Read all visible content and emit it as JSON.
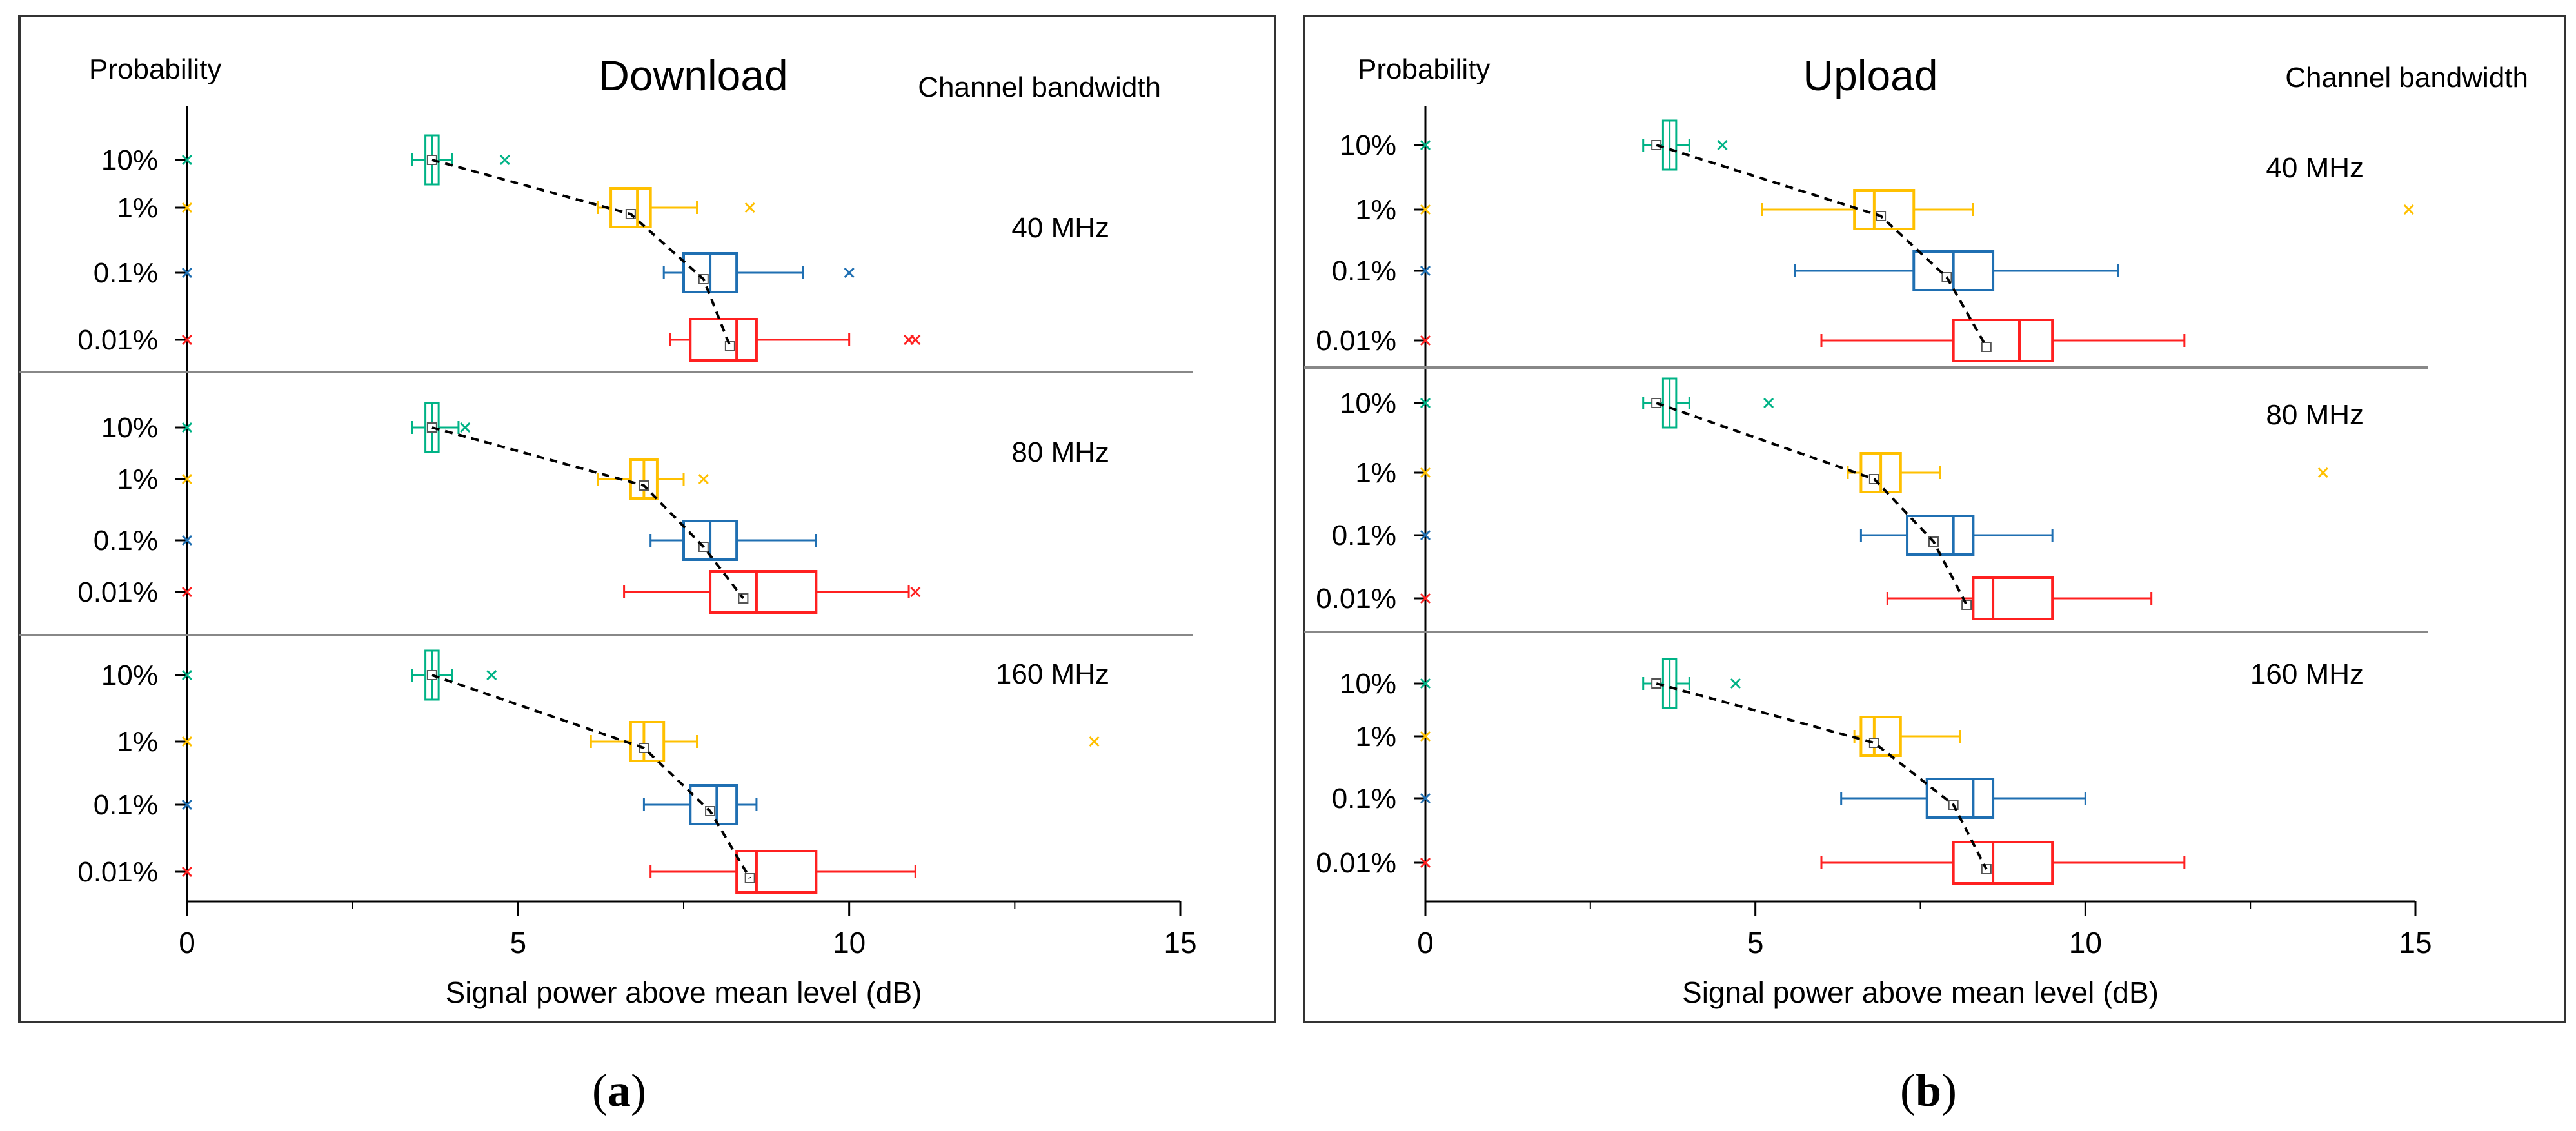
{
  "colors": {
    "40pct": "#00b386",
    "10pct": "#ffc000",
    "01pct": "#1f6fb2",
    "001pct": "#ff2020",
    "frame": "#333333",
    "divider": "#888888",
    "trend": "#000000"
  },
  "chart_data": [
    {
      "type": "boxplot",
      "panel_label": "(a)",
      "panel_label_letter": "a",
      "title": "Download",
      "ylabel": "Probability",
      "group_header": "Channel bandwidth",
      "xlabel": "Signal power above mean level (dB)",
      "xlim": [
        0,
        15
      ],
      "xticks": [
        "0",
        "5",
        "10",
        "15"
      ],
      "xtick_values": [
        0,
        5,
        10,
        15
      ],
      "categories": [
        "10%",
        "1%",
        "0.1%",
        "0.01%"
      ],
      "groups": [
        {
          "name": "40 MHz",
          "boxes": [
            {
              "category": "10%",
              "whisker_low": 3.4,
              "q1": 3.6,
              "median": 3.7,
              "q3": 3.8,
              "whisker_high": 4.0,
              "mean": 3.7,
              "outliers": [
                0,
                4.8
              ]
            },
            {
              "category": "1%",
              "whisker_low": 6.2,
              "q1": 6.4,
              "median": 6.8,
              "q3": 7.0,
              "whisker_high": 7.7,
              "mean": 6.7,
              "outliers": [
                0,
                8.5
              ]
            },
            {
              "category": "0.1%",
              "whisker_low": 7.2,
              "q1": 7.5,
              "median": 7.9,
              "q3": 8.3,
              "whisker_high": 9.3,
              "mean": 7.8,
              "outliers": [
                0,
                10.0
              ]
            },
            {
              "category": "0.01%",
              "whisker_low": 7.3,
              "q1": 7.6,
              "median": 8.3,
              "q3": 8.6,
              "whisker_high": 10.0,
              "mean": 8.2,
              "outliers": [
                0,
                10.9,
                11.0
              ]
            }
          ]
        },
        {
          "name": "80 MHz",
          "boxes": [
            {
              "category": "10%",
              "whisker_low": 3.4,
              "q1": 3.6,
              "median": 3.7,
              "q3": 3.8,
              "whisker_high": 4.1,
              "mean": 3.7,
              "outliers": [
                0,
                4.2
              ]
            },
            {
              "category": "1%",
              "whisker_low": 6.2,
              "q1": 6.7,
              "median": 6.9,
              "q3": 7.1,
              "whisker_high": 7.5,
              "mean": 6.9,
              "outliers": [
                0,
                7.8
              ]
            },
            {
              "category": "0.1%",
              "whisker_low": 7.0,
              "q1": 7.5,
              "median": 7.9,
              "q3": 8.3,
              "whisker_high": 9.5,
              "mean": 7.8,
              "outliers": [
                0
              ]
            },
            {
              "category": "0.01%",
              "whisker_low": 6.6,
              "q1": 7.9,
              "median": 8.6,
              "q3": 9.5,
              "whisker_high": 10.9,
              "mean": 8.4,
              "outliers": [
                0,
                11.0
              ]
            }
          ]
        },
        {
          "name": "160 MHz",
          "boxes": [
            {
              "category": "10%",
              "whisker_low": 3.4,
              "q1": 3.6,
              "median": 3.7,
              "q3": 3.8,
              "whisker_high": 4.0,
              "mean": 3.7,
              "outliers": [
                0,
                4.6
              ]
            },
            {
              "category": "1%",
              "whisker_low": 6.1,
              "q1": 6.7,
              "median": 6.9,
              "q3": 7.2,
              "whisker_high": 7.7,
              "mean": 6.9,
              "outliers": [
                0,
                13.7
              ]
            },
            {
              "category": "0.1%",
              "whisker_low": 6.9,
              "q1": 7.6,
              "median": 8.0,
              "q3": 8.3,
              "whisker_high": 8.6,
              "mean": 7.9,
              "outliers": [
                0
              ]
            },
            {
              "category": "0.01%",
              "whisker_low": 7.0,
              "q1": 8.3,
              "median": 8.6,
              "q3": 9.5,
              "whisker_high": 11.0,
              "mean": 8.5,
              "outliers": [
                0
              ]
            }
          ]
        }
      ]
    },
    {
      "type": "boxplot",
      "panel_label": "(b)",
      "panel_label_letter": "b",
      "title": "Upload",
      "ylabel": "Probability",
      "group_header": "Channel bandwidth",
      "xlabel": "Signal power above mean level (dB)",
      "xlim": [
        0,
        15
      ],
      "xticks": [
        "0",
        "5",
        "10",
        "15"
      ],
      "xtick_values": [
        0,
        5,
        10,
        15
      ],
      "categories": [
        "10%",
        "1%",
        "0.1%",
        "0.01%"
      ],
      "groups": [
        {
          "name": "40 MHz",
          "boxes": [
            {
              "category": "10%",
              "whisker_low": 3.3,
              "q1": 3.6,
              "median": 3.7,
              "q3": 3.8,
              "whisker_high": 4.0,
              "mean": 3.5,
              "outliers": [
                0,
                4.5
              ]
            },
            {
              "category": "1%",
              "whisker_low": 5.1,
              "q1": 6.5,
              "median": 6.8,
              "q3": 7.4,
              "whisker_high": 8.3,
              "mean": 6.9,
              "outliers": [
                0,
                14.9
              ]
            },
            {
              "category": "0.1%",
              "whisker_low": 5.6,
              "q1": 7.4,
              "median": 8.0,
              "q3": 8.6,
              "whisker_high": 10.5,
              "mean": 7.9,
              "outliers": [
                0
              ]
            },
            {
              "category": "0.01%",
              "whisker_low": 6.0,
              "q1": 8.0,
              "median": 9.0,
              "q3": 9.5,
              "whisker_high": 11.5,
              "mean": 8.5,
              "outliers": [
                0
              ]
            }
          ]
        },
        {
          "name": "80 MHz",
          "boxes": [
            {
              "category": "10%",
              "whisker_low": 3.3,
              "q1": 3.6,
              "median": 3.7,
              "q3": 3.8,
              "whisker_high": 4.0,
              "mean": 3.5,
              "outliers": [
                0,
                5.2
              ]
            },
            {
              "category": "1%",
              "whisker_low": 6.4,
              "q1": 6.6,
              "median": 6.9,
              "q3": 7.2,
              "whisker_high": 7.8,
              "mean": 6.8,
              "outliers": [
                0,
                13.6
              ]
            },
            {
              "category": "0.1%",
              "whisker_low": 6.6,
              "q1": 7.3,
              "median": 8.0,
              "q3": 8.3,
              "whisker_high": 9.5,
              "mean": 7.7,
              "outliers": [
                0
              ]
            },
            {
              "category": "0.01%",
              "whisker_low": 7.0,
              "q1": 8.3,
              "median": 8.6,
              "q3": 9.5,
              "whisker_high": 11.0,
              "mean": 8.2,
              "outliers": [
                0
              ]
            }
          ]
        },
        {
          "name": "160 MHz",
          "boxes": [
            {
              "category": "10%",
              "whisker_low": 3.3,
              "q1": 3.6,
              "median": 3.7,
              "q3": 3.8,
              "whisker_high": 4.0,
              "mean": 3.5,
              "outliers": [
                0,
                4.7
              ]
            },
            {
              "category": "1%",
              "whisker_low": 6.5,
              "q1": 6.6,
              "median": 6.8,
              "q3": 7.2,
              "whisker_high": 8.1,
              "mean": 6.8,
              "outliers": [
                0
              ]
            },
            {
              "category": "0.1%",
              "whisker_low": 6.3,
              "q1": 7.6,
              "median": 8.3,
              "q3": 8.6,
              "whisker_high": 10.0,
              "mean": 8.0,
              "outliers": [
                0
              ]
            },
            {
              "category": "0.01%",
              "whisker_low": 6.0,
              "q1": 8.0,
              "median": 8.6,
              "q3": 9.5,
              "whisker_high": 11.5,
              "mean": 8.5,
              "outliers": [
                0
              ]
            }
          ]
        }
      ]
    }
  ]
}
